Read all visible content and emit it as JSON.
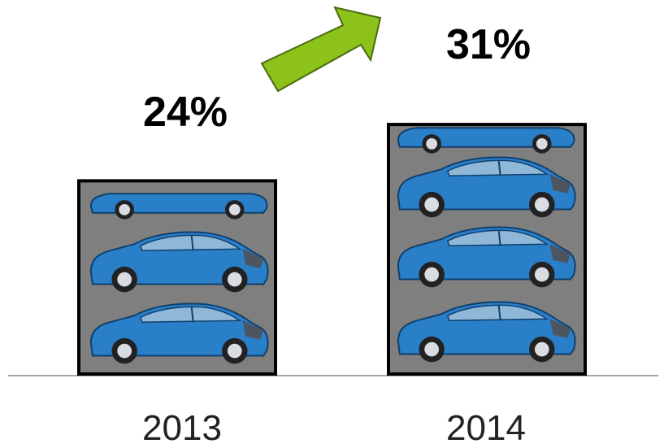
{
  "chart_data": {
    "type": "bar",
    "categories": [
      "2013",
      "2014"
    ],
    "values": [
      24,
      31
    ],
    "unit": "%",
    "value_labels": [
      "24%",
      "31%"
    ],
    "bar_fill": "#7f7f7f",
    "bar_border": "#000000",
    "car_color": "#2a7fc9",
    "arrow_color": "#8cc21a",
    "arrow_icon": "up-right-arrow-icon",
    "ylim": [
      0,
      35
    ],
    "grid": false
  }
}
